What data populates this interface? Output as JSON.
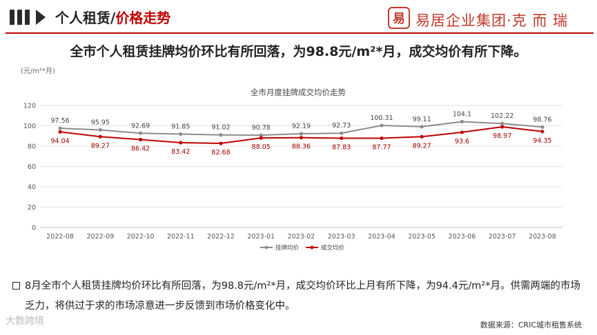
{
  "header": {
    "title_part1": "个人租赁/",
    "title_part2": "价格走势",
    "logo_seal": "易",
    "logo_text": "易居企业集团·克 而 瑞"
  },
  "headline": "全市个人租赁挂牌均价环比有所回落，为98.8元/m²*月，成交均价有所下降。",
  "colors": {
    "listing": "#8c8c8c",
    "deal": "#c00000",
    "accent": "#c00000"
  },
  "chart_data": {
    "type": "line",
    "title": "全市月度挂牌成交均价走势",
    "unit_label": "(元/m²*月)",
    "categories": [
      "2022-08",
      "2022-09",
      "2022-10",
      "2022-11",
      "2022-12",
      "2023-01",
      "2023-02",
      "2023-03",
      "2023-04",
      "2023-05",
      "2023-06",
      "2023-07",
      "2023-08"
    ],
    "ylim": [
      0,
      120
    ],
    "yticks": [
      "0",
      "20",
      "40",
      "60",
      "80",
      "100",
      "120"
    ],
    "grid": true,
    "legend_position": "bottom",
    "series": [
      {
        "name": "挂牌均价",
        "color": "#8c8c8c",
        "values": [
          97.56,
          95.95,
          92.69,
          91.85,
          91.02,
          90.78,
          92.19,
          92.73,
          100.31,
          99.11,
          104.1,
          102.22,
          98.76
        ],
        "labels": [
          "97.56",
          "95.95",
          "92.69",
          "91.85",
          "91.02",
          "90.78",
          "92.19",
          "92.73",
          "100.31",
          "99.11",
          "104.1",
          "102.22",
          "98.76"
        ]
      },
      {
        "name": "成交均价",
        "color": "#c00000",
        "values": [
          94.04,
          89.27,
          86.42,
          83.42,
          82.68,
          88.05,
          88.36,
          87.83,
          87.77,
          89.27,
          93.6,
          98.97,
          94.35
        ],
        "labels": [
          "94.04",
          "89.27",
          "86.42",
          "83.42",
          "82.68",
          "88.05",
          "88.36",
          "87.83",
          "87.77",
          "89.27",
          "93.6",
          "98.97",
          "94.35"
        ]
      }
    ]
  },
  "note": "8月全市个人租赁挂牌均价环比有所回落，为98.8元/m²*月，成交均价环比上月有所下降，为94.4元/m²*月。供需两端的市场乏力，将供过于求的市场凉意进一步反馈到市场价格变化中。",
  "source": "数据来源：CRIC城市租售系统",
  "watermark": "大数跨境"
}
